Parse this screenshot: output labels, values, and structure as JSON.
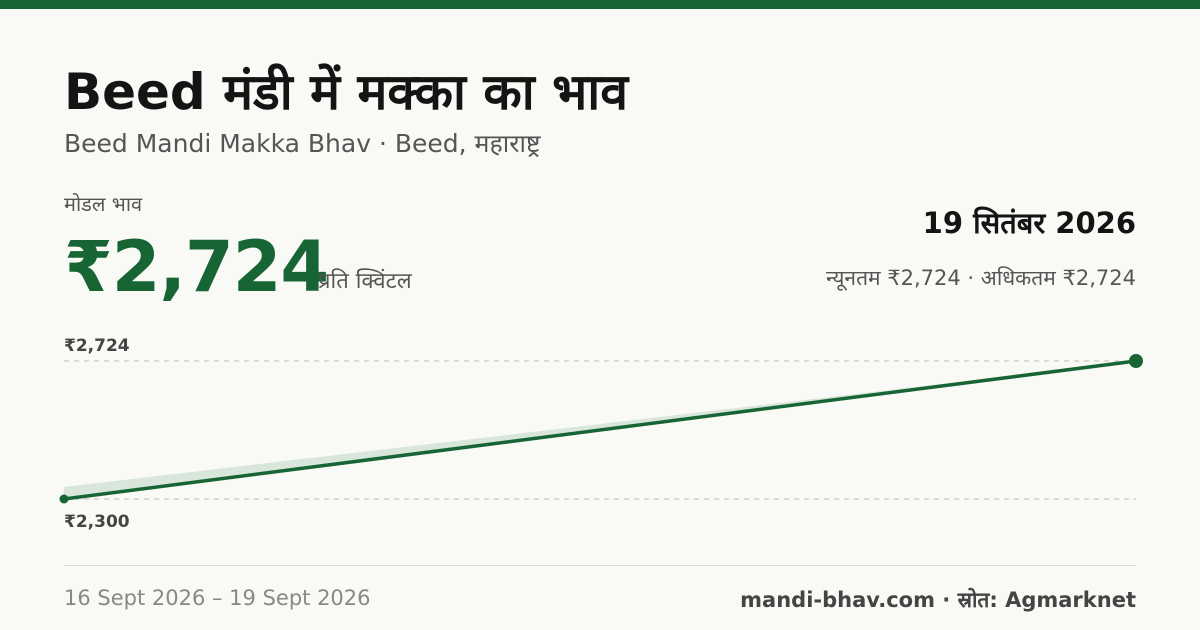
{
  "header": {
    "title": "Beed मंडी में मक्का का भाव",
    "subtitle": "Beed Mandi Makka Bhav · Beed, महाराष्ट्र"
  },
  "price": {
    "label": "मोडल भाव",
    "value": "₹2,724",
    "unit": "प्रति क्विंटल"
  },
  "summary": {
    "date": "19 सितंबर 2026",
    "range": "न्यूनतम ₹2,724 · अधिकतम ₹2,724"
  },
  "chart_data": {
    "type": "line",
    "x": [
      "16 Sept 2026",
      "19 Sept 2026"
    ],
    "values": [
      2300,
      2724
    ],
    "tick_labels": [
      "₹2,724",
      "₹2,300"
    ],
    "ylim": [
      2300,
      2724
    ],
    "grid": true,
    "line_color": "#176535",
    "area_color": "#d9e6dc"
  },
  "footer": {
    "date_range": "16 Sept 2026 – 19 Sept 2026",
    "source": "mandi-bhav.com · स्रोत: Agmarknet"
  },
  "colors": {
    "accent": "#176535",
    "background": "#f9f9f6"
  }
}
